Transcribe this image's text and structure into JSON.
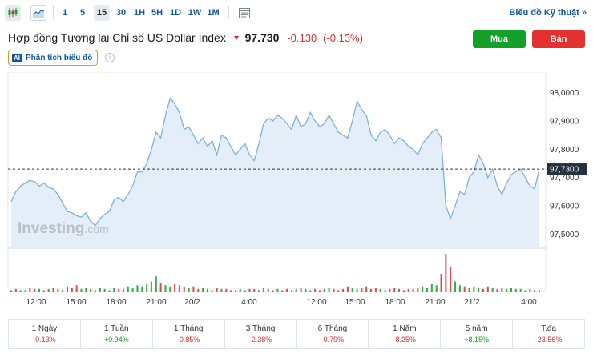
{
  "toolbar": {
    "timeframes": [
      {
        "label": "1",
        "active": false
      },
      {
        "label": "5",
        "active": false
      },
      {
        "label": "15",
        "active": true
      },
      {
        "label": "30",
        "active": false
      },
      {
        "label": "1H",
        "active": false
      },
      {
        "label": "5H",
        "active": false
      },
      {
        "label": "1D",
        "active": false
      },
      {
        "label": "1W",
        "active": false
      },
      {
        "label": "1M",
        "active": false
      }
    ],
    "tech_chart_link": "Biểu đồ Kỹ thuật »"
  },
  "header": {
    "title": "Hợp đồng Tương lai Chỉ số US Dollar Index",
    "price": "97.730",
    "change": "-0.130",
    "change_pct": "(-0.13%)",
    "buy_label": "Mua",
    "sell_label": "Bán",
    "ai_badge": "AI",
    "ai_label": "Phân tích biểu đồ",
    "info_glyph": "i"
  },
  "colors": {
    "line": "#7fb0d8",
    "fill": "#e3eef8",
    "up": "#12a028",
    "down": "#dc2b2b",
    "accent": "#1256a0"
  },
  "chart_data": {
    "type": "area",
    "y_ticks": [
      "98,0000",
      "97,9000",
      "97,8000",
      "97,7000",
      "97,6000",
      "97,5000"
    ],
    "ylim": [
      97.45,
      98.05
    ],
    "current_label": "97,7300",
    "current_value": 97.73,
    "x_tick_labels": [
      "12:00",
      "15:00",
      "18:00",
      "21:00",
      "20/2",
      "4:00",
      "12:00",
      "15:00",
      "18:00",
      "21:00",
      "21/2",
      "4:00"
    ],
    "watermark": "Investing",
    "watermark_suffix": ".com",
    "values": [
      97.615,
      97.65,
      97.67,
      97.68,
      97.69,
      97.685,
      97.67,
      97.68,
      97.665,
      97.66,
      97.64,
      97.61,
      97.58,
      97.575,
      97.565,
      97.56,
      97.575,
      97.545,
      97.53,
      97.555,
      97.57,
      97.58,
      97.62,
      97.63,
      97.615,
      97.64,
      97.67,
      97.72,
      97.72,
      97.75,
      97.8,
      97.86,
      97.84,
      97.92,
      97.98,
      97.96,
      97.93,
      97.87,
      97.88,
      97.85,
      97.82,
      97.84,
      97.81,
      97.83,
      97.78,
      97.85,
      97.84,
      97.81,
      97.78,
      97.8,
      97.82,
      97.78,
      97.76,
      97.82,
      97.89,
      97.91,
      97.9,
      97.92,
      97.91,
      97.89,
      97.87,
      97.92,
      97.88,
      97.89,
      97.93,
      97.9,
      97.88,
      97.89,
      97.92,
      97.89,
      97.86,
      97.85,
      97.84,
      97.9,
      97.97,
      97.94,
      97.92,
      97.85,
      97.83,
      97.86,
      97.87,
      97.85,
      97.82,
      97.84,
      97.83,
      97.81,
      97.8,
      97.78,
      97.82,
      97.84,
      97.86,
      97.87,
      97.84,
      97.6,
      97.555,
      97.6,
      97.65,
      97.64,
      97.7,
      97.72,
      97.78,
      97.75,
      97.7,
      97.73,
      97.67,
      97.64,
      97.68,
      97.71,
      97.72,
      97.73,
      97.7,
      97.67,
      97.66,
      97.73
    ],
    "volumes": [
      1,
      2,
      1,
      1,
      3,
      2,
      2,
      1,
      2,
      3,
      2,
      1,
      4,
      3,
      5,
      2,
      3,
      2,
      1,
      3,
      2,
      1,
      3,
      2,
      2,
      4,
      3,
      5,
      4,
      6,
      8,
      12,
      7,
      5,
      4,
      6,
      5,
      4,
      3,
      4,
      2,
      3,
      2,
      1,
      3,
      2,
      2,
      1,
      1,
      2,
      1,
      2,
      2,
      1,
      3,
      2,
      1,
      2,
      1,
      2,
      1,
      2,
      3,
      2,
      1,
      2,
      1,
      2,
      3,
      2,
      1,
      2,
      4,
      3,
      2,
      3,
      4,
      2,
      3,
      2,
      1,
      2,
      3,
      2,
      1,
      2,
      2,
      3,
      4,
      3,
      6,
      5,
      14,
      30,
      20,
      8,
      5,
      4,
      3,
      4,
      3,
      2,
      4,
      3,
      2,
      3,
      2,
      3,
      2,
      2,
      1,
      2,
      1,
      1
    ],
    "volume_up": [
      1,
      0,
      1,
      1,
      0,
      0,
      1,
      0,
      1,
      0,
      0,
      1,
      0,
      0,
      0,
      1,
      1,
      0,
      0,
      1,
      1,
      1,
      1,
      0,
      1,
      1,
      1,
      1,
      1,
      1,
      1,
      1,
      0,
      1,
      1,
      0,
      0,
      0,
      1,
      0,
      0,
      1,
      0,
      1,
      0,
      1,
      0,
      0,
      0,
      1,
      1,
      0,
      0,
      1,
      1,
      1,
      0,
      1,
      0,
      0,
      0,
      1,
      0,
      1,
      1,
      0,
      0,
      1,
      1,
      0,
      0,
      0,
      0,
      1,
      1,
      0,
      0,
      0,
      0,
      1,
      1,
      0,
      0,
      1,
      0,
      0,
      0,
      0,
      1,
      1,
      1,
      1,
      0,
      0,
      0,
      1,
      1,
      0,
      1,
      1,
      1,
      0,
      0,
      1,
      0,
      0,
      1,
      1,
      1,
      1,
      0,
      0,
      0,
      1
    ]
  },
  "performance": [
    {
      "label": "1 Ngày",
      "value": "-0.13%",
      "up": false
    },
    {
      "label": "1 Tuần",
      "value": "+0.94%",
      "up": true
    },
    {
      "label": "1 Tháng",
      "value": "-0.85%",
      "up": false
    },
    {
      "label": "3 Tháng",
      "value": "-2.38%",
      "up": false
    },
    {
      "label": "6 Tháng",
      "value": "-0.79%",
      "up": false
    },
    {
      "label": "1 Năm",
      "value": "-8.25%",
      "up": false
    },
    {
      "label": "5 năm",
      "value": "+8.15%",
      "up": true
    },
    {
      "label": "T.đa",
      "value": "-23.56%",
      "up": false
    }
  ]
}
